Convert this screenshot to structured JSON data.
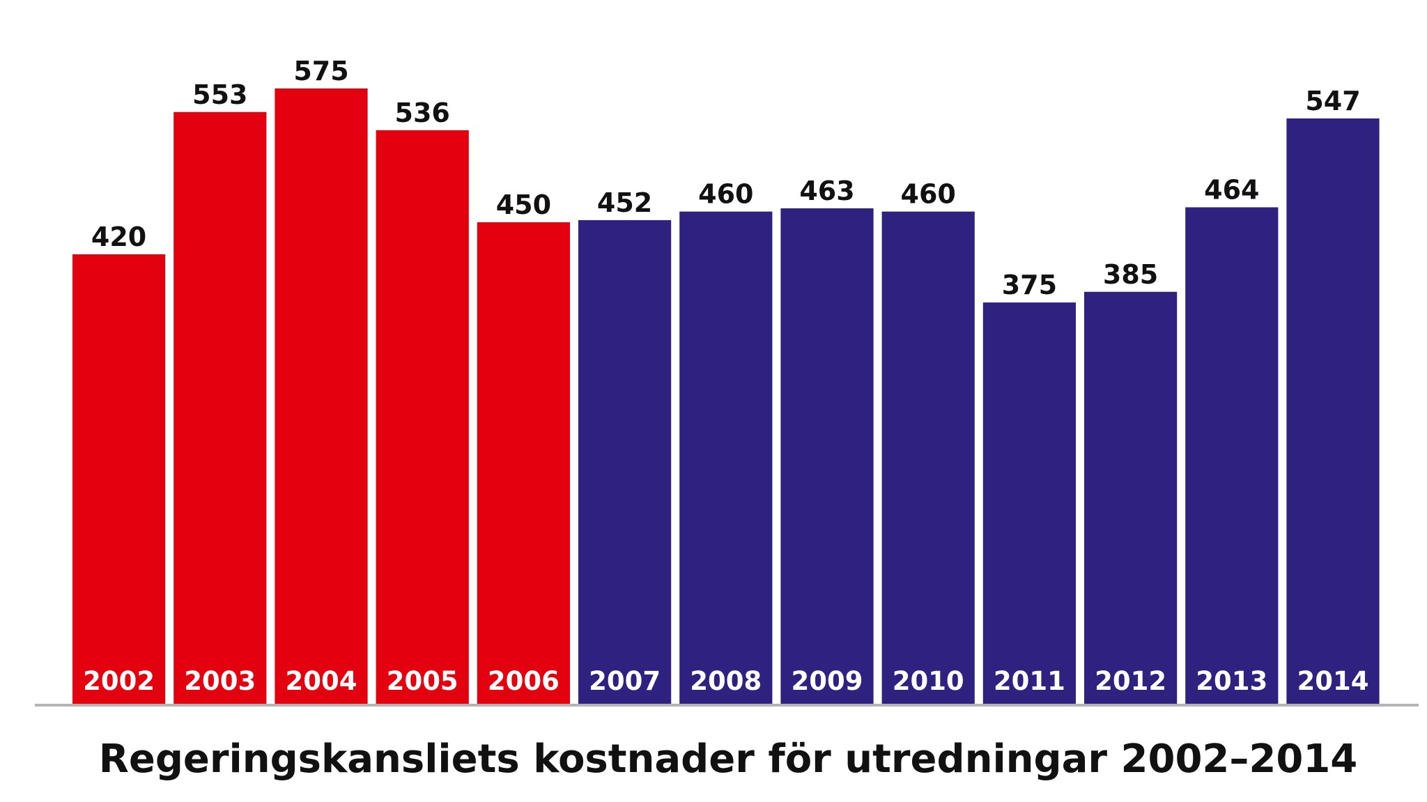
{
  "chart_data": {
    "type": "bar",
    "title": "Regeringskansliets kostnader för utredningar 2002–2014",
    "categories": [
      "2002",
      "2003",
      "2004",
      "2005",
      "2006",
      "2007",
      "2008",
      "2009",
      "2010",
      "2011",
      "2012",
      "2013",
      "2014"
    ],
    "values": [
      420,
      553,
      575,
      536,
      450,
      452,
      460,
      463,
      460,
      375,
      385,
      464,
      547
    ],
    "bar_colors": [
      "#e3000f",
      "#e3000f",
      "#e3000f",
      "#e3000f",
      "#e3000f",
      "#2f2180",
      "#2f2180",
      "#2f2180",
      "#2f2180",
      "#2f2180",
      "#2f2180",
      "#2f2180",
      "#2f2180"
    ],
    "xlabel": "",
    "ylabel": "",
    "ylim": [
      0,
      575
    ],
    "grid": false,
    "legend": "none",
    "baseline_color": "#b4b4b4"
  }
}
